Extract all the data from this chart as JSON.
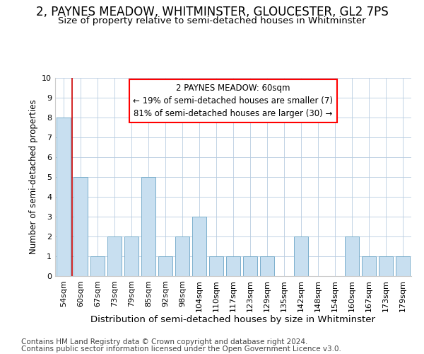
{
  "title1": "2, PAYNES MEADOW, WHITMINSTER, GLOUCESTER, GL2 7PS",
  "title2": "Size of property relative to semi-detached houses in Whitminster",
  "xlabel": "Distribution of semi-detached houses by size in Whitminster",
  "ylabel": "Number of semi-detached properties",
  "categories": [
    "54sqm",
    "60sqm",
    "67sqm",
    "73sqm",
    "79sqm",
    "85sqm",
    "92sqm",
    "98sqm",
    "104sqm",
    "110sqm",
    "117sqm",
    "123sqm",
    "129sqm",
    "135sqm",
    "142sqm",
    "148sqm",
    "154sqm",
    "160sqm",
    "167sqm",
    "173sqm",
    "179sqm"
  ],
  "values": [
    8,
    5,
    1,
    2,
    2,
    5,
    1,
    2,
    3,
    1,
    1,
    1,
    1,
    0,
    2,
    0,
    0,
    2,
    1,
    1,
    1
  ],
  "bar_color": "#c8dff0",
  "bar_edge_color": "#7aaecc",
  "highlight_index": 1,
  "highlight_color": "#cc0000",
  "annotation_title": "2 PAYNES MEADOW: 60sqm",
  "annotation_line1": "← 19% of semi-detached houses are smaller (7)",
  "annotation_line2": "81% of semi-detached houses are larger (30) →",
  "footnote1": "Contains HM Land Registry data © Crown copyright and database right 2024.",
  "footnote2": "Contains public sector information licensed under the Open Government Licence v3.0.",
  "ylim": [
    0,
    10
  ],
  "yticks": [
    0,
    1,
    2,
    3,
    4,
    5,
    6,
    7,
    8,
    9,
    10
  ],
  "background_color": "#ffffff",
  "plot_background": "#ffffff",
  "grid_color": "#b8cce0",
  "title1_fontsize": 12,
  "title2_fontsize": 9.5,
  "xlabel_fontsize": 9.5,
  "ylabel_fontsize": 8.5,
  "tick_fontsize": 8,
  "annotation_fontsize": 8.5,
  "footnote_fontsize": 7.5
}
